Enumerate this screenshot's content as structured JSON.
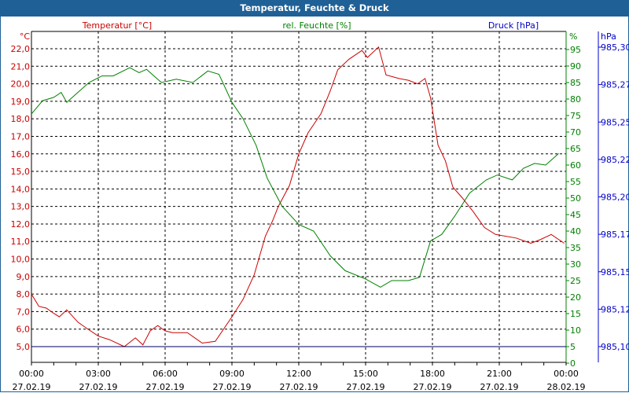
{
  "window": {
    "title": "Temperatur, Feuchte & Druck"
  },
  "colors": {
    "temperature": "#cc0000",
    "humidity": "#008000",
    "pressure": "#0000cc",
    "titlebar": "#1f6096"
  },
  "chart_data": {
    "type": "line",
    "title": "Temperatur, Feuchte & Druck",
    "grid": true,
    "x_ticks": [
      {
        "time": "00:00",
        "date": "27.02.19"
      },
      {
        "time": "03:00",
        "date": "27.02.19"
      },
      {
        "time": "06:00",
        "date": "27.02.19"
      },
      {
        "time": "09:00",
        "date": "27.02.19"
      },
      {
        "time": "12:00",
        "date": "27.02.19"
      },
      {
        "time": "15:00",
        "date": "27.02.19"
      },
      {
        "time": "18:00",
        "date": "27.02.19"
      },
      {
        "time": "21:00",
        "date": "27.02.19"
      },
      {
        "time": "00:00",
        "date": "28.02.19"
      }
    ],
    "axes": {
      "temperature": {
        "label": "Temperatur [°C]",
        "unit": "°C",
        "ylim": [
          4.1,
          23.0
        ],
        "ticks": [
          "5,0",
          "6,0",
          "7,0",
          "8,0",
          "9,0",
          "10,0",
          "11,0",
          "12,0",
          "13,0",
          "14,0",
          "15,0",
          "16,0",
          "17,0",
          "18,0",
          "19,0",
          "20,0",
          "21,0",
          "22,0"
        ]
      },
      "humidity": {
        "label": "rel. Feuchte [%]",
        "unit": "%",
        "ylim": [
          0,
          100
        ],
        "ticks": [
          "0",
          "5",
          "10",
          "15",
          "20",
          "25",
          "30",
          "35",
          "40",
          "45",
          "50",
          "55",
          "60",
          "65",
          "70",
          "75",
          "80",
          "85",
          "90",
          "95"
        ]
      },
      "pressure": {
        "label": "Druck [hPa]",
        "unit": "hPa",
        "ticks": [
          "985,10",
          "985,12",
          "985,15",
          "985,17",
          "985,20",
          "985,22",
          "985,25",
          "985,27",
          "985,30"
        ]
      }
    },
    "series": [
      {
        "name": "Temperatur [°C]",
        "axis": "temperature",
        "points": [
          [
            "00:00",
            8.0
          ],
          [
            "00:20",
            7.3
          ],
          [
            "00:40",
            7.2
          ],
          [
            "01:00",
            6.9
          ],
          [
            "01:15",
            6.7
          ],
          [
            "01:35",
            7.1
          ],
          [
            "02:05",
            6.4
          ],
          [
            "02:25",
            6.1
          ],
          [
            "03:00",
            5.6
          ],
          [
            "03:30",
            5.4
          ],
          [
            "04:10",
            5.0
          ],
          [
            "04:40",
            5.5
          ],
          [
            "05:00",
            5.1
          ],
          [
            "05:20",
            5.9
          ],
          [
            "05:40",
            6.2
          ],
          [
            "06:00",
            5.9
          ],
          [
            "06:20",
            5.8
          ],
          [
            "07:00",
            5.8
          ],
          [
            "07:40",
            5.2
          ],
          [
            "08:15",
            5.3
          ],
          [
            "09:00",
            6.7
          ],
          [
            "09:30",
            7.7
          ],
          [
            "10:00",
            9.1
          ],
          [
            "10:30",
            11.3
          ],
          [
            "10:50",
            12.2
          ],
          [
            "11:05",
            13.0
          ],
          [
            "11:35",
            14.2
          ],
          [
            "12:00",
            16.0
          ],
          [
            "12:25",
            17.2
          ],
          [
            "13:00",
            18.3
          ],
          [
            "13:25",
            19.6
          ],
          [
            "13:45",
            20.8
          ],
          [
            "14:15",
            21.4
          ],
          [
            "14:50",
            21.9
          ],
          [
            "15:05",
            21.5
          ],
          [
            "15:35",
            22.1
          ],
          [
            "15:55",
            20.5
          ],
          [
            "16:30",
            20.3
          ],
          [
            "16:55",
            20.2
          ],
          [
            "17:20",
            20.0
          ],
          [
            "17:40",
            20.3
          ],
          [
            "17:55",
            19.2
          ],
          [
            "18:15",
            16.5
          ],
          [
            "18:35",
            15.6
          ],
          [
            "18:55",
            14.1
          ],
          [
            "19:20",
            13.5
          ],
          [
            "19:50",
            12.7
          ],
          [
            "20:20",
            11.8
          ],
          [
            "20:50",
            11.4
          ],
          [
            "21:45",
            11.2
          ],
          [
            "22:25",
            10.9
          ],
          [
            "22:50",
            11.1
          ],
          [
            "23:20",
            11.4
          ],
          [
            "23:55",
            10.9
          ]
        ]
      },
      {
        "name": "rel. Feuchte [%]",
        "axis": "humidity",
        "points": [
          [
            "00:00",
            75.5
          ],
          [
            "00:30",
            79.5
          ],
          [
            "01:00",
            80.5
          ],
          [
            "01:20",
            82
          ],
          [
            "01:35",
            79
          ],
          [
            "02:05",
            82
          ],
          [
            "02:35",
            85
          ],
          [
            "03:10",
            87
          ],
          [
            "03:40",
            87
          ],
          [
            "04:25",
            89.5
          ],
          [
            "04:50",
            88
          ],
          [
            "05:10",
            89
          ],
          [
            "05:30",
            87
          ],
          [
            "05:50",
            85
          ],
          [
            "06:30",
            86
          ],
          [
            "07:15",
            85
          ],
          [
            "07:55",
            88.5
          ],
          [
            "08:25",
            87.5
          ],
          [
            "09:00",
            79
          ],
          [
            "09:30",
            74
          ],
          [
            "10:05",
            66
          ],
          [
            "10:35",
            56
          ],
          [
            "11:15",
            47.5
          ],
          [
            "12:00",
            42
          ],
          [
            "12:40",
            40
          ],
          [
            "13:25",
            32.5
          ],
          [
            "14:05",
            28
          ],
          [
            "15:00",
            25.5
          ],
          [
            "15:40",
            23
          ],
          [
            "16:10",
            25
          ],
          [
            "16:55",
            25
          ],
          [
            "17:25",
            26
          ],
          [
            "17:55",
            37
          ],
          [
            "18:25",
            39
          ],
          [
            "19:00",
            44.5
          ],
          [
            "19:40",
            51.5
          ],
          [
            "20:25",
            55.5
          ],
          [
            "20:55",
            57
          ],
          [
            "21:35",
            55.5
          ],
          [
            "22:05",
            59
          ],
          [
            "22:35",
            60.5
          ],
          [
            "23:05",
            60
          ],
          [
            "23:40",
            63.5
          ]
        ]
      },
      {
        "name": "Druck [hPa]",
        "axis": "pressure",
        "points": [
          [
            "00:00",
            985.1
          ],
          [
            "24:00",
            985.1
          ]
        ]
      }
    ]
  }
}
